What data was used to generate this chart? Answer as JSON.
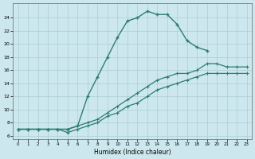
{
  "xlabel": "Humidex (Indice chaleur)",
  "bg_color": "#cce8ee",
  "grid_color": "#b0d4d8",
  "line_color": "#2e7d6e",
  "xlim": [
    -0.5,
    23.5
  ],
  "ylim": [
    5.5,
    26.2
  ],
  "xticks": [
    0,
    1,
    2,
    3,
    4,
    5,
    6,
    7,
    8,
    9,
    10,
    11,
    12,
    13,
    14,
    15,
    16,
    17,
    18,
    19,
    20,
    21,
    22,
    23
  ],
  "yticks": [
    6,
    8,
    10,
    12,
    14,
    16,
    18,
    20,
    22,
    24
  ],
  "line_main_x": [
    0,
    1,
    2,
    3,
    4,
    5,
    6,
    7,
    8,
    9,
    10,
    11,
    12,
    13,
    14,
    15,
    16,
    17,
    18,
    19
  ],
  "line_main_y": [
    7,
    7,
    7,
    7,
    7,
    7,
    7.5,
    12,
    15,
    18,
    21,
    23.5,
    24,
    25,
    24.5,
    24.5,
    23,
    20.5,
    19.5,
    19
  ],
  "line_upper_x": [
    0,
    1,
    2,
    3,
    4,
    5,
    6,
    7,
    8,
    9,
    10,
    11,
    12,
    13,
    14,
    15,
    16,
    17,
    18,
    19,
    20,
    21,
    22,
    23
  ],
  "line_upper_y": [
    7,
    7,
    7,
    7,
    7,
    7,
    7.5,
    8,
    8.5,
    9.5,
    10.5,
    11.5,
    12.5,
    13.5,
    14.5,
    15,
    15.5,
    15.5,
    16,
    17,
    17,
    16.5,
    16.5,
    16.5
  ],
  "line_lower_x": [
    0,
    1,
    2,
    3,
    4,
    5,
    6,
    7,
    8,
    9,
    10,
    11,
    12,
    13,
    14,
    15,
    16,
    17,
    18,
    19,
    20,
    21,
    22,
    23
  ],
  "line_lower_y": [
    7,
    7,
    7,
    7,
    7,
    6.5,
    7,
    7.5,
    8,
    9,
    9.5,
    10.5,
    11,
    12,
    13,
    13.5,
    14,
    14.5,
    15,
    15.5,
    15.5,
    15.5,
    15.5,
    15.5
  ]
}
